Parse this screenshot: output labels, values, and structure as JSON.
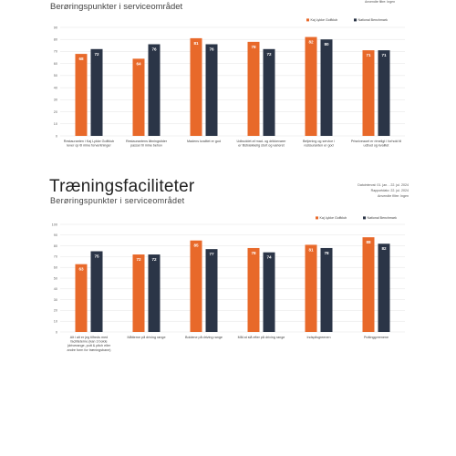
{
  "top_section": {
    "subtitle": "Berøringspunkter i serviceområdet",
    "filter": "Anvendte filtre: Ingen"
  },
  "bottom_section": {
    "title": "Træningsfaciliteter",
    "subtitle": "Berøringspunkter i serviceområdet",
    "date_range": "Datointerval: 01. jan. - 22. jul. 2024",
    "report_date": "Rapportdato: 22. jul. 2024",
    "filter": "Anvendte filtre: Ingen"
  },
  "colors": {
    "series1": "#E8692A",
    "series2": "#2B3547"
  },
  "chart_data": [
    {
      "type": "bar",
      "categories": [
        [
          "Restauranten i Kaj Lykke Golfklub",
          "lever op til mine forventninger"
        ],
        [
          "Restaurantens åbningstider",
          "passer til mine behov"
        ],
        [
          "Madens kvalitet er god"
        ],
        [
          "Udbuddet af mad- og drikkevarer",
          "er tilstrækkelig stort og varieret"
        ],
        [
          "Betjening og service i",
          "restauranten er god"
        ],
        [
          "Prisniveauet er rimeligt i forhold til",
          "udbud og kvalitet"
        ]
      ],
      "series": [
        {
          "name": "Kaj Lykke Golfklub",
          "values": [
            68,
            64,
            81,
            78,
            82,
            71
          ]
        },
        {
          "name": "National Benchmark",
          "values": [
            72,
            76,
            76,
            72,
            80,
            71
          ]
        }
      ],
      "ylim": [
        0,
        90
      ],
      "yticks": [
        0,
        10,
        20,
        30,
        40,
        50,
        60,
        70,
        80,
        90
      ],
      "legend": "top-right",
      "grid": true
    },
    {
      "type": "bar",
      "categories": [
        [
          "Alt i alt er jeg tilfreds med",
          "faciliteterne (kan 3 bolde",
          "(driverange, putt & pitch eller",
          "andre form for træningsbane)"
        ],
        [
          "Måtterne på driving range"
        ],
        [
          "Boldene på driving range"
        ],
        [
          "Mål at slå efter på driving range"
        ],
        [
          "Indspilsgreenen"
        ],
        [
          "Puttinggreenene"
        ]
      ],
      "series": [
        {
          "name": "Kaj Lykke Golfklub",
          "values": [
            63,
            72,
            85,
            78,
            81,
            88
          ]
        },
        {
          "name": "National Benchmark",
          "values": [
            75,
            72,
            77,
            74,
            78,
            82
          ]
        }
      ],
      "ylim": [
        0,
        100
      ],
      "yticks": [
        0,
        10,
        20,
        30,
        40,
        50,
        60,
        70,
        80,
        90,
        100
      ],
      "legend": "top-right",
      "grid": true
    }
  ]
}
